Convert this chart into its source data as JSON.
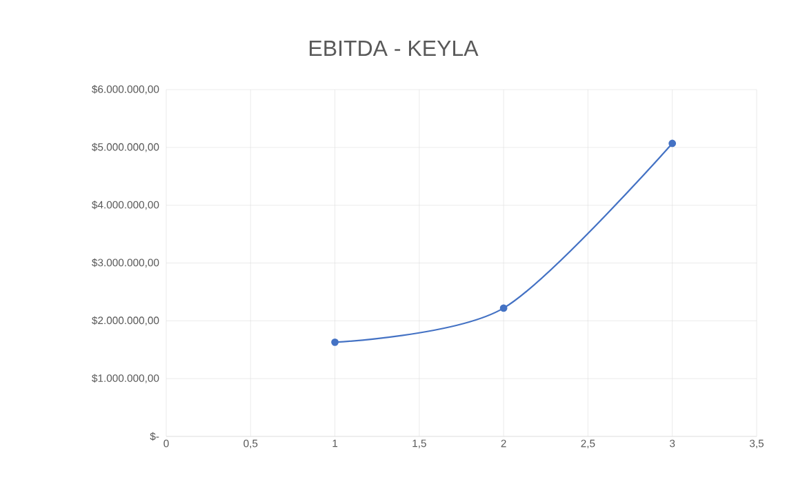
{
  "chart_data": {
    "type": "line",
    "title": "EBITDA - KEYLA",
    "x": [
      1,
      2,
      3
    ],
    "series": [
      {
        "color": "#4472c4",
        "values": [
          1630000,
          2220000,
          5070000
        ]
      }
    ],
    "xlim": [
      0,
      3.5
    ],
    "xticks": [
      0,
      {
        "value": 0.5,
        "label": "0,5"
      },
      1,
      {
        "value": 1.5,
        "label": "1,5"
      },
      2,
      {
        "value": 2.5,
        "label": "2,5"
      },
      3,
      {
        "value": 3.5,
        "label": "3,5"
      }
    ],
    "ylim": [
      0,
      6000000
    ],
    "yticks": [
      {
        "value": 0,
        "label": "$-"
      },
      {
        "value": 1000000,
        "label": "$1.000.000,00"
      },
      {
        "value": 2000000,
        "label": "$2.000.000,00"
      },
      {
        "value": 3000000,
        "label": "$3.000.000,00"
      },
      {
        "value": 4000000,
        "label": "$4.000.000,00"
      },
      {
        "value": 5000000,
        "label": "$5.000.000,00"
      },
      {
        "value": 6000000,
        "label": "$6.000.000,00"
      }
    ],
    "grid": true,
    "marker": "circle",
    "line_style": "solid"
  }
}
